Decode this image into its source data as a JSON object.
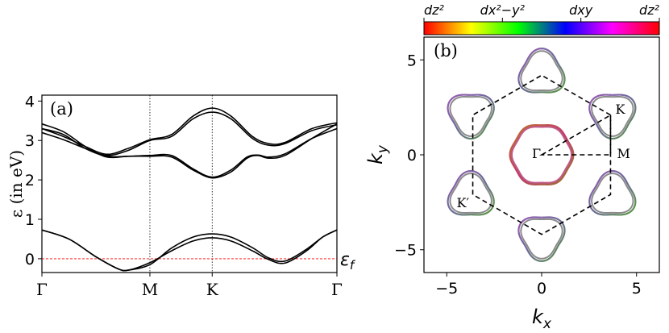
{
  "chart_data": [
    {
      "type": "line",
      "panel_label": "(a)",
      "ylabel": "ε (in eV)",
      "ylim": [
        -0.35,
        4.15
      ],
      "yticks": [
        0,
        1,
        2,
        3,
        4
      ],
      "ytick_labels": [
        "0",
        "1",
        "2",
        "3",
        "4"
      ],
      "x_symmetry_points": [
        {
          "label": "Γ",
          "k": 0
        },
        {
          "label": "M",
          "k": 1
        },
        {
          "label": "K",
          "k": 1.577
        },
        {
          "label": "Γ",
          "k": 2.732
        }
      ],
      "fermi_level": {
        "label": "εf",
        "value": 0
      },
      "grid": false,
      "series": [
        {
          "values": [
            [
              0,
              0.73
            ],
            [
              0.25,
              0.5
            ],
            [
              0.5,
              0.05
            ],
            [
              0.7,
              -0.25
            ],
            [
              0.8,
              -0.29
            ],
            [
              1.0,
              -0.1
            ],
            [
              1.2,
              0.2
            ],
            [
              1.4,
              0.45
            ],
            [
              1.577,
              0.53
            ],
            [
              1.75,
              0.45
            ],
            [
              1.95,
              0.2
            ],
            [
              2.1,
              -0.02
            ],
            [
              2.25,
              -0.11
            ],
            [
              2.45,
              0.2
            ],
            [
              2.6,
              0.55
            ],
            [
              2.732,
              0.73
            ]
          ]
        },
        {
          "values": [
            [
              0,
              0.73
            ],
            [
              0.25,
              0.5
            ],
            [
              0.5,
              0.05
            ],
            [
              0.7,
              -0.25
            ],
            [
              0.8,
              -0.29
            ],
            [
              1.0,
              -0.15
            ],
            [
              1.2,
              0.27
            ],
            [
              1.4,
              0.55
            ],
            [
              1.577,
              0.63
            ],
            [
              1.75,
              0.55
            ],
            [
              1.95,
              0.28
            ],
            [
              2.1,
              0.02
            ],
            [
              2.25,
              -0.06
            ],
            [
              2.45,
              0.24
            ],
            [
              2.6,
              0.55
            ],
            [
              2.732,
              0.73
            ]
          ]
        },
        {
          "values": [
            [
              0,
              3.42
            ],
            [
              0.2,
              3.22
            ],
            [
              0.4,
              2.85
            ],
            [
              0.6,
              2.58
            ],
            [
              0.8,
              2.6
            ],
            [
              1.0,
              2.6
            ],
            [
              1.2,
              2.58
            ],
            [
              1.4,
              2.25
            ],
            [
              1.577,
              2.05
            ],
            [
              1.75,
              2.2
            ],
            [
              1.9,
              2.55
            ],
            [
              2.0,
              2.62
            ],
            [
              2.1,
              2.55
            ],
            [
              2.25,
              2.62
            ],
            [
              2.5,
              3.05
            ],
            [
              2.732,
              3.42
            ]
          ]
        },
        {
          "values": [
            [
              0,
              3.3
            ],
            [
              0.2,
              3.15
            ],
            [
              0.4,
              2.8
            ],
            [
              0.6,
              2.6
            ],
            [
              0.8,
              2.6
            ],
            [
              1.0,
              2.62
            ],
            [
              1.2,
              2.62
            ],
            [
              1.4,
              2.28
            ],
            [
              1.577,
              2.07
            ],
            [
              1.75,
              2.25
            ],
            [
              1.9,
              2.58
            ],
            [
              2.0,
              2.63
            ],
            [
              2.1,
              2.58
            ],
            [
              2.25,
              2.66
            ],
            [
              2.5,
              3.05
            ],
            [
              2.732,
              3.3
            ]
          ]
        },
        {
          "values": [
            [
              0,
              3.2
            ],
            [
              0.2,
              3.02
            ],
            [
              0.4,
              2.8
            ],
            [
              0.6,
              2.62
            ],
            [
              0.8,
              2.75
            ],
            [
              1.0,
              3.0
            ],
            [
              1.2,
              3.1
            ],
            [
              1.4,
              3.55
            ],
            [
              1.577,
              3.72
            ],
            [
              1.75,
              3.55
            ],
            [
              1.95,
              3.05
            ],
            [
              2.1,
              2.88
            ],
            [
              2.25,
              2.92
            ],
            [
              2.5,
              3.25
            ],
            [
              2.732,
              3.4
            ]
          ]
        },
        {
          "values": [
            [
              0,
              3.3
            ],
            [
              0.2,
              3.1
            ],
            [
              0.4,
              2.85
            ],
            [
              0.6,
              2.65
            ],
            [
              0.8,
              2.8
            ],
            [
              1.0,
              3.02
            ],
            [
              1.2,
              3.15
            ],
            [
              1.4,
              3.62
            ],
            [
              1.577,
              3.82
            ],
            [
              1.75,
              3.62
            ],
            [
              1.95,
              3.1
            ],
            [
              2.1,
              2.92
            ],
            [
              2.25,
              2.95
            ],
            [
              2.5,
              3.3
            ],
            [
              2.732,
              3.45
            ]
          ]
        }
      ]
    },
    {
      "type": "scatter",
      "panel_label": "(b)",
      "xlabel": "kx",
      "ylabel": "ky",
      "xlim": [
        -6.2,
        6.2
      ],
      "ylim": [
        -6.2,
        6.2
      ],
      "xticks": [
        -5,
        0,
        5
      ],
      "xtick_labels": [
        "−5",
        "0",
        "5"
      ],
      "yticks": [
        -5,
        0,
        5
      ],
      "ytick_labels": [
        "−5",
        "0",
        "5"
      ],
      "bz_radius": 4.19,
      "points": [
        {
          "label": "K",
          "k": [
            3.63,
            2.09
          ]
        },
        {
          "label": "M",
          "k": [
            3.63,
            0
          ]
        },
        {
          "label": "Γ",
          "k": [
            0,
            0
          ]
        },
        {
          "label": "K′",
          "k": [
            -3.63,
            -2.09
          ]
        }
      ],
      "central_pocket": {
        "center": [
          0,
          0
        ],
        "radius": 1.6
      },
      "k_pockets": [
        {
          "center": [
            0,
            4.3
          ],
          "orientation_deg": 90
        },
        {
          "center": [
            -3.73,
            2.15
          ],
          "orientation_deg": 150
        },
        {
          "center": [
            3.73,
            2.15
          ],
          "orientation_deg": 30
        },
        {
          "center": [
            -3.73,
            -2.15
          ],
          "orientation_deg": 210
        },
        {
          "center": [
            3.73,
            -2.15
          ],
          "orientation_deg": 330
        },
        {
          "center": [
            0,
            -4.3
          ],
          "orientation_deg": 270
        }
      ],
      "pocket_size": 1.15,
      "colorbar": {
        "labels": [
          "dz²",
          "dx²−y²",
          "dxy",
          "dz²"
        ],
        "colors": [
          "#ff0000",
          "#ffff00",
          "#00ff00",
          "#0000ff",
          "#ff00ff",
          "#ff0000"
        ]
      }
    }
  ]
}
